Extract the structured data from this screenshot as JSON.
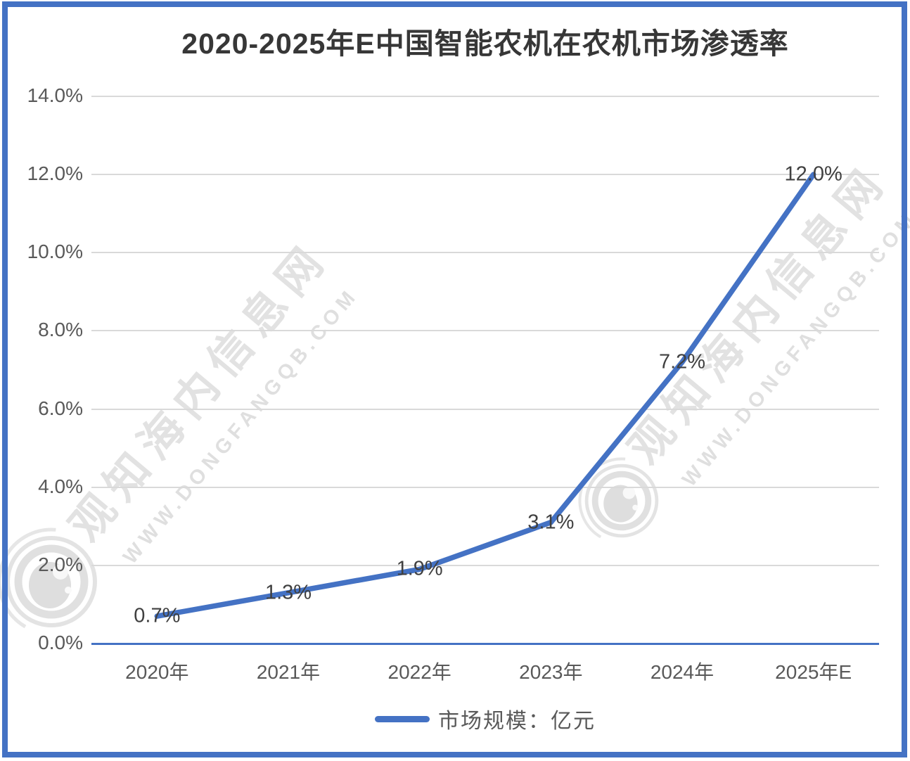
{
  "title": "2020-2025年E中国智能农机在农机市场渗透率",
  "watermark": {
    "cn": "观知海内信息网",
    "en": "WWW.DONGFANGQB.COM"
  },
  "legend": {
    "label": "市场规模：亿元"
  },
  "colors": {
    "series_line": "#4472C4",
    "frame": "#4472C4",
    "gridline": "#d9d9d9",
    "axis_text": "#595959",
    "data_label_text": "#404040"
  },
  "chart_data": {
    "type": "line",
    "title": "2020-2025年E中国智能农机在农机市场渗透率",
    "categories": [
      "2020年",
      "2021年",
      "2022年",
      "2023年",
      "2024年",
      "2025年E"
    ],
    "series": [
      {
        "name": "市场规模：亿元",
        "values": [
          0.7,
          1.3,
          1.9,
          3.1,
          7.2,
          12.0
        ],
        "color": "#4472C4"
      }
    ],
    "data_labels": [
      "0.7%",
      "1.3%",
      "1.9%",
      "3.1%",
      "7.2%",
      "12.0%"
    ],
    "xlabel": "",
    "ylabel": "",
    "y_axis": {
      "min": 0,
      "max": 14,
      "step": 2,
      "tick_labels": [
        "0.0%",
        "2.0%",
        "4.0%",
        "6.0%",
        "8.0%",
        "10.0%",
        "12.0%",
        "14.0%"
      ]
    },
    "grid": true,
    "legend_position": "bottom"
  }
}
